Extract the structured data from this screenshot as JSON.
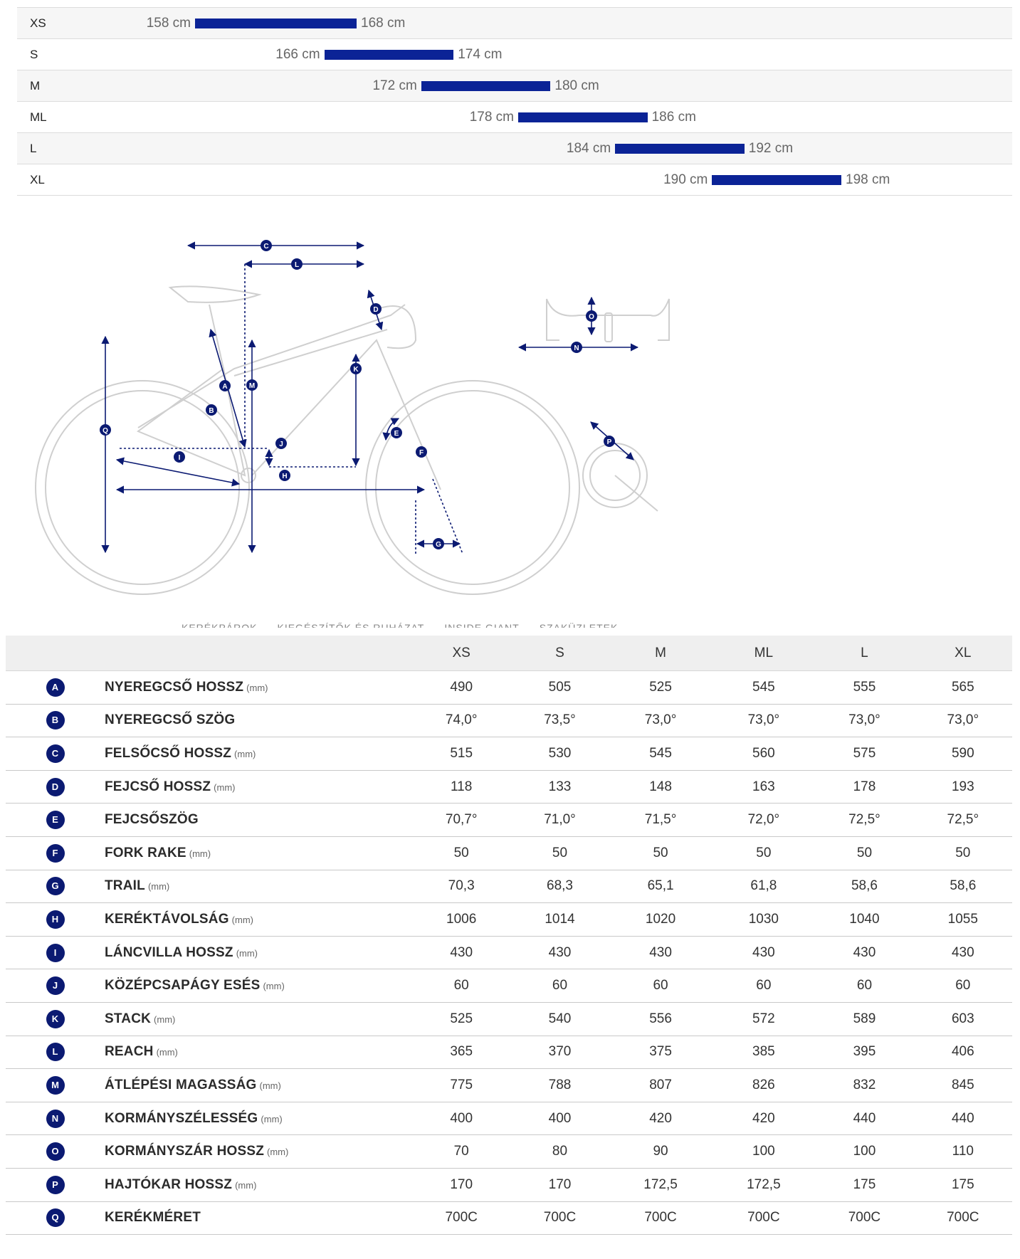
{
  "size_ranges": [
    {
      "size": "XS",
      "min": "158 cm",
      "max": "168 cm",
      "min_cm": 158,
      "max_cm": 168
    },
    {
      "size": "S",
      "min": "166 cm",
      "max": "174 cm",
      "min_cm": 166,
      "max_cm": 174
    },
    {
      "size": "M",
      "min": "172 cm",
      "max": "180 cm",
      "min_cm": 172,
      "max_cm": 180
    },
    {
      "size": "ML",
      "min": "178 cm",
      "max": "186 cm",
      "min_cm": 178,
      "max_cm": 186
    },
    {
      "size": "L",
      "min": "184 cm",
      "max": "192 cm",
      "min_cm": 184,
      "max_cm": 192
    },
    {
      "size": "XL",
      "min": "190 cm",
      "max": "198 cm",
      "min_cm": 190,
      "max_cm": 198
    }
  ],
  "diagram": {
    "labels": [
      "A",
      "B",
      "C",
      "D",
      "E",
      "F",
      "G",
      "H",
      "I",
      "J",
      "K",
      "L",
      "M",
      "N",
      "O",
      "P",
      "Q"
    ]
  },
  "nav_strip": [
    "KERÉKPÁROK",
    "KIEGÉSZÍTŐK ÉS RUHÁZAT",
    "INSIDE GIANT",
    "SZAKÜZLETEK"
  ],
  "table": {
    "headers": [
      "XS",
      "S",
      "M",
      "ML",
      "L",
      "XL"
    ],
    "rows": [
      {
        "key": "A",
        "name": "NYEREGCSŐ HOSSZ",
        "unit": "(mm)",
        "values": [
          "490",
          "505",
          "525",
          "545",
          "555",
          "565"
        ]
      },
      {
        "key": "B",
        "name": "NYEREGCSŐ SZÖG",
        "unit": "",
        "values": [
          "74,0°",
          "73,5°",
          "73,0°",
          "73,0°",
          "73,0°",
          "73,0°"
        ]
      },
      {
        "key": "C",
        "name": "FELSŐCSŐ HOSSZ",
        "unit": "(mm)",
        "values": [
          "515",
          "530",
          "545",
          "560",
          "575",
          "590"
        ]
      },
      {
        "key": "D",
        "name": "FEJCSŐ HOSSZ",
        "unit": "(mm)",
        "values": [
          "118",
          "133",
          "148",
          "163",
          "178",
          "193"
        ]
      },
      {
        "key": "E",
        "name": "FEJCSŐSZÖG",
        "unit": "",
        "values": [
          "70,7°",
          "71,0°",
          "71,5°",
          "72,0°",
          "72,5°",
          "72,5°"
        ]
      },
      {
        "key": "F",
        "name": "FORK RAKE",
        "unit": "(mm)",
        "values": [
          "50",
          "50",
          "50",
          "50",
          "50",
          "50"
        ]
      },
      {
        "key": "G",
        "name": "TRAIL",
        "unit": "(mm)",
        "values": [
          "70,3",
          "68,3",
          "65,1",
          "61,8",
          "58,6",
          "58,6"
        ]
      },
      {
        "key": "H",
        "name": "KERÉKTÁVOLSÁG",
        "unit": "(mm)",
        "values": [
          "1006",
          "1014",
          "1020",
          "1030",
          "1040",
          "1055"
        ]
      },
      {
        "key": "I",
        "name": "LÁNCVILLA HOSSZ",
        "unit": "(mm)",
        "values": [
          "430",
          "430",
          "430",
          "430",
          "430",
          "430"
        ]
      },
      {
        "key": "J",
        "name": "KÖZÉPCSAPÁGY ESÉS",
        "unit": "(mm)",
        "values": [
          "60",
          "60",
          "60",
          "60",
          "60",
          "60"
        ]
      },
      {
        "key": "K",
        "name": "STACK",
        "unit": "(mm)",
        "values": [
          "525",
          "540",
          "556",
          "572",
          "589",
          "603"
        ]
      },
      {
        "key": "L",
        "name": "REACH",
        "unit": "(mm)",
        "values": [
          "365",
          "370",
          "375",
          "385",
          "395",
          "406"
        ]
      },
      {
        "key": "M",
        "name": "ÁTLÉPÉSI MAGASSÁG",
        "unit": "(mm)",
        "values": [
          "775",
          "788",
          "807",
          "826",
          "832",
          "845"
        ]
      },
      {
        "key": "N",
        "name": "KORMÁNYSZÉLESSÉG",
        "unit": "(mm)",
        "values": [
          "400",
          "400",
          "420",
          "420",
          "440",
          "440"
        ]
      },
      {
        "key": "O",
        "name": "KORMÁNYSZÁR HOSSZ",
        "unit": "(mm)",
        "values": [
          "70",
          "80",
          "90",
          "100",
          "100",
          "110"
        ]
      },
      {
        "key": "P",
        "name": "HAJTÓKAR HOSSZ",
        "unit": "(mm)",
        "values": [
          "170",
          "170",
          "172,5",
          "172,5",
          "175",
          "175"
        ]
      },
      {
        "key": "Q",
        "name": "KERÉKMÉRET",
        "unit": "",
        "values": [
          "700C",
          "700C",
          "700C",
          "700C",
          "700C",
          "700C"
        ]
      }
    ]
  }
}
